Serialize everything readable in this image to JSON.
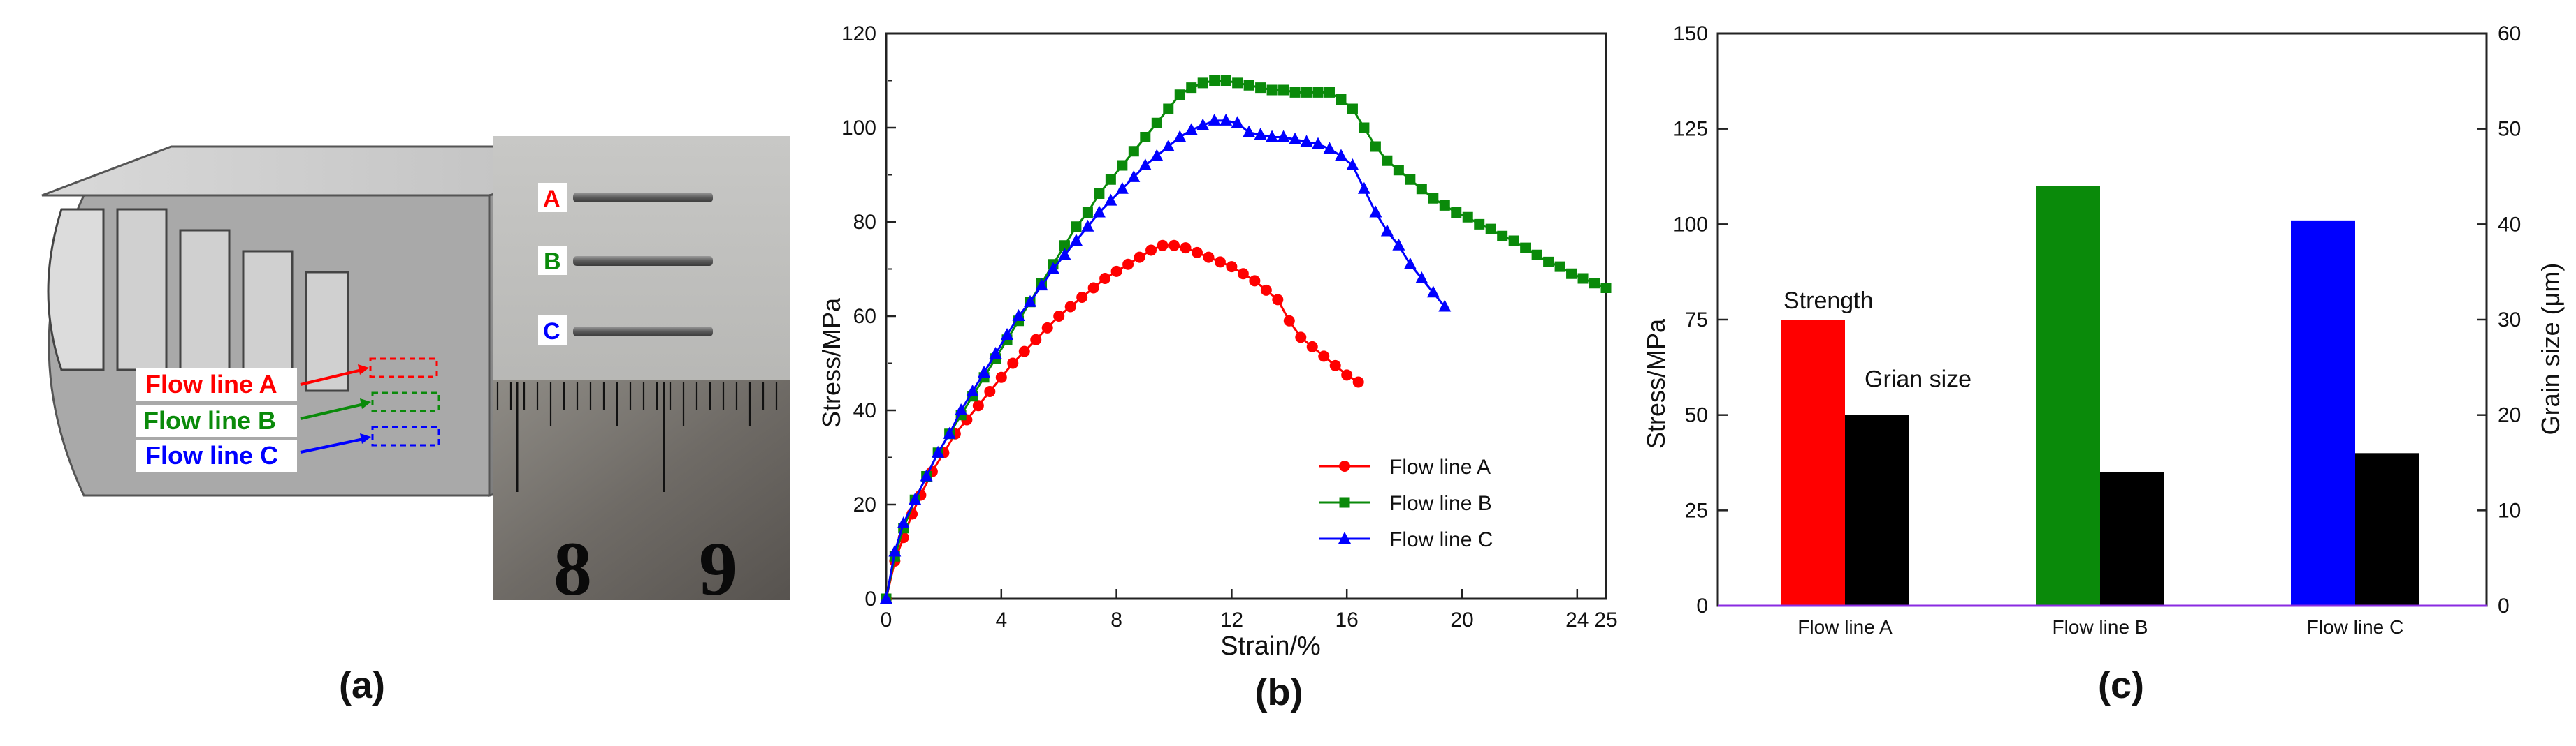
{
  "panel_a": {
    "caption": "(a)",
    "flow_lines": [
      {
        "label": "Flow line A",
        "color": "#ff0000"
      },
      {
        "label": "Flow line B",
        "color": "#0a8a0a"
      },
      {
        "label": "Flow line C",
        "color": "#0000ff"
      }
    ],
    "specimen_labels": [
      "A",
      "B",
      "C"
    ],
    "ruler_numbers": [
      "8",
      "9"
    ]
  },
  "chart_data": [
    {
      "type": "line",
      "caption": "(b)",
      "title": "",
      "xlabel": "Strain/%",
      "ylabel": "Stress/MPa",
      "xlim": [
        0,
        25
      ],
      "ylim": [
        0,
        120
      ],
      "xticks": [
        "0",
        "4",
        "8",
        "12",
        "16",
        "20",
        "24",
        "25"
      ],
      "yticks": [
        "0",
        "20",
        "40",
        "60",
        "80",
        "100",
        "120"
      ],
      "series": [
        {
          "name": "Flow line A",
          "color": "#ff0000",
          "marker": "circle",
          "x": [
            0.0,
            0.3,
            0.6,
            0.9,
            1.2,
            1.6,
            2.0,
            2.4,
            2.8,
            3.2,
            3.6,
            4.0,
            4.4,
            4.8,
            5.2,
            5.6,
            6.0,
            6.4,
            6.8,
            7.2,
            7.6,
            8.0,
            8.4,
            8.8,
            9.2,
            9.6,
            10.0,
            10.4,
            10.8,
            11.2,
            11.6,
            12.0,
            12.4,
            12.8,
            13.2,
            13.6,
            14.0,
            14.4,
            14.8,
            15.2,
            15.6,
            16.0,
            16.4
          ],
          "y": [
            0,
            8,
            13,
            18,
            22,
            27,
            31,
            35,
            38,
            41,
            44,
            47,
            50,
            52.5,
            55,
            57.5,
            60,
            62,
            64,
            66,
            68,
            69.5,
            71,
            72.5,
            74,
            75,
            75,
            74.5,
            73.5,
            72.5,
            71.5,
            70.5,
            69,
            67.5,
            65.5,
            63.5,
            59,
            55.5,
            53.5,
            51.5,
            49.5,
            47.5,
            46
          ]
        },
        {
          "name": "Flow line B",
          "color": "#0a8a0a",
          "marker": "square",
          "x": [
            0.0,
            0.3,
            0.6,
            1.0,
            1.4,
            1.8,
            2.2,
            2.6,
            3.0,
            3.4,
            3.8,
            4.2,
            4.6,
            5.0,
            5.4,
            5.8,
            6.2,
            6.6,
            7.0,
            7.4,
            7.8,
            8.2,
            8.6,
            9.0,
            9.4,
            9.8,
            10.2,
            10.6,
            11.0,
            11.4,
            11.8,
            12.2,
            12.6,
            13.0,
            13.4,
            13.8,
            14.2,
            14.6,
            15.0,
            15.4,
            15.8,
            16.2,
            16.6,
            17.0,
            17.4,
            17.8,
            18.2,
            18.6,
            19.0,
            19.4,
            19.8,
            20.2,
            20.6,
            21.0,
            21.4,
            21.8,
            22.2,
            22.6,
            23.0,
            23.4,
            23.8,
            24.2,
            24.6,
            25.0
          ],
          "y": [
            0,
            9,
            15,
            21,
            26,
            31,
            35,
            39,
            43,
            47,
            51,
            55,
            59,
            63,
            67,
            71,
            75,
            79,
            82,
            86,
            89,
            92,
            95,
            98,
            101,
            104,
            107,
            108.5,
            109.5,
            110,
            110,
            109.5,
            109,
            108.5,
            108,
            108,
            107.5,
            107.5,
            107.5,
            107.5,
            106,
            104,
            100,
            96,
            93,
            91,
            89,
            87,
            85,
            83.5,
            82,
            81,
            79.5,
            78.5,
            77,
            76,
            74.5,
            73,
            71.5,
            70.5,
            69,
            68,
            67,
            66
          ]
        },
        {
          "name": "Flow line C",
          "color": "#0000ff",
          "marker": "triangle",
          "x": [
            0.0,
            0.3,
            0.6,
            1.0,
            1.4,
            1.8,
            2.2,
            2.6,
            3.0,
            3.4,
            3.8,
            4.2,
            4.6,
            5.0,
            5.4,
            5.8,
            6.2,
            6.6,
            7.0,
            7.4,
            7.8,
            8.2,
            8.6,
            9.0,
            9.4,
            9.8,
            10.2,
            10.6,
            11.0,
            11.4,
            11.8,
            12.2,
            12.6,
            13.0,
            13.4,
            13.8,
            14.2,
            14.6,
            15.0,
            15.4,
            15.8,
            16.2,
            16.6,
            17.0,
            17.4,
            17.8,
            18.2,
            18.6,
            19.0,
            19.4
          ],
          "y": [
            0,
            10,
            16,
            21,
            26,
            31,
            35,
            40,
            44,
            48,
            52,
            56,
            60,
            63,
            66.5,
            70,
            73,
            76,
            79,
            82,
            84.5,
            87,
            89.5,
            92,
            94,
            96,
            98,
            99.5,
            100.5,
            101.5,
            101.5,
            101,
            99,
            98.5,
            98,
            98,
            97.5,
            97,
            96.5,
            95.5,
            94,
            92,
            87,
            82,
            78,
            75,
            71,
            68,
            65,
            62
          ]
        }
      ],
      "legend_position": "lower-right"
    },
    {
      "type": "bar",
      "caption": "(c)",
      "title": "",
      "categories": [
        "Flow line A",
        "Flow line B",
        "Flow line C"
      ],
      "ylabel_left": "Stress/MPa",
      "ylabel_right": "Grain size (μm)",
      "ylim_left": [
        0,
        150
      ],
      "ylim_right": [
        0,
        60
      ],
      "yticks_left": [
        "0",
        "25",
        "50",
        "75",
        "100",
        "125",
        "150"
      ],
      "yticks_right": [
        "0",
        "10",
        "20",
        "30",
        "40",
        "50",
        "60"
      ],
      "series": [
        {
          "name": "Strength",
          "axis": "left",
          "values": [
            75,
            110,
            101
          ],
          "colors": [
            "#ff0000",
            "#0a8a0a",
            "#0000ff"
          ]
        },
        {
          "name": "Grian size",
          "axis": "right",
          "values": [
            20,
            14,
            16
          ],
          "colors": [
            "#000000",
            "#000000",
            "#000000"
          ]
        }
      ],
      "annotations": [
        "Strength",
        "Grian size"
      ]
    }
  ]
}
